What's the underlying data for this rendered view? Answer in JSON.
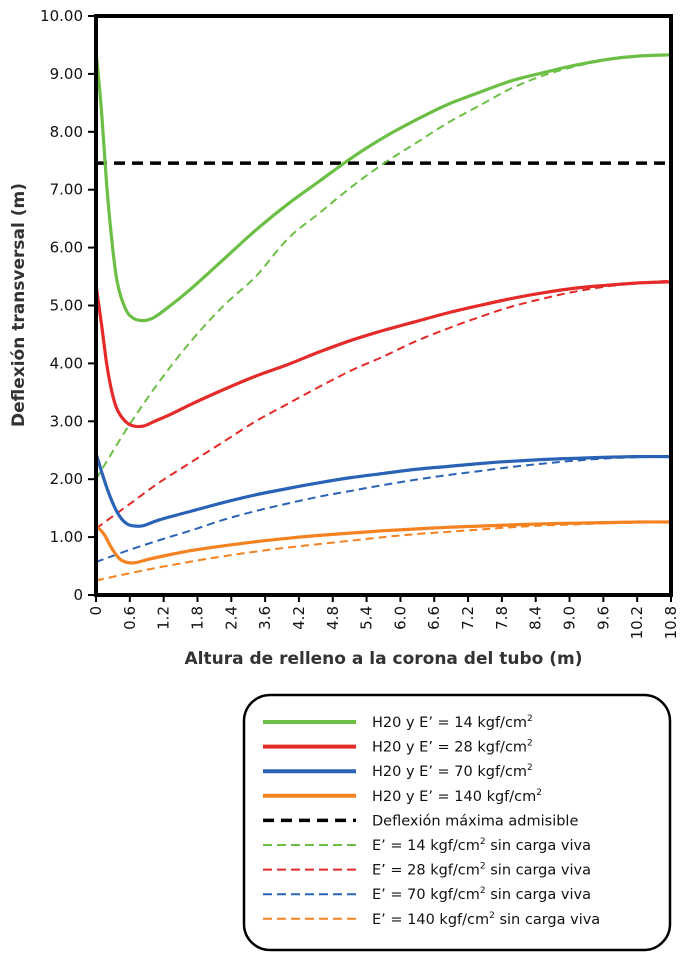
{
  "chart_data": {
    "type": "line",
    "xlabel": "Altura de relleno a la corona del tubo (m)",
    "ylabel": "Deflexión transversal  (m)",
    "xlim": [
      0,
      10.8
    ],
    "ylim": [
      0,
      10
    ],
    "x_ticks": [
      "0",
      "0.6",
      "1.2",
      "1.8",
      "2.4",
      "3.6",
      "4.2",
      "4.8",
      "5.4",
      "6.0",
      "6.6",
      "7.2",
      "7.8",
      "8.4",
      "9.0",
      "9.6",
      "10.2",
      "10.8"
    ],
    "y_ticks": [
      "0",
      "1.00",
      "2.00",
      "3.00",
      "4.00",
      "5.00",
      "6.00",
      "7.00",
      "8.00",
      "9.00",
      "10.00"
    ],
    "grid": false,
    "legend_position": "bottom-right",
    "series": [
      {
        "name": "H20 y E' =   14 kgf/cm²",
        "label_main": "H20 y E’ =   14 kgf/cm",
        "color": "#6cbf45",
        "style": "solid",
        "points": [
          [
            0,
            9.4
          ],
          [
            0.1,
            8.4
          ],
          [
            0.2,
            7.1
          ],
          [
            0.3,
            6.1
          ],
          [
            0.4,
            5.4
          ],
          [
            0.55,
            4.95
          ],
          [
            0.7,
            4.78
          ],
          [
            0.9,
            4.74
          ],
          [
            1.1,
            4.8
          ],
          [
            1.4,
            5.0
          ],
          [
            1.8,
            5.3
          ],
          [
            2.4,
            5.8
          ],
          [
            3.0,
            6.3
          ],
          [
            3.6,
            6.75
          ],
          [
            4.2,
            7.15
          ],
          [
            4.8,
            7.55
          ],
          [
            5.4,
            7.9
          ],
          [
            6.0,
            8.2
          ],
          [
            6.6,
            8.47
          ],
          [
            7.2,
            8.68
          ],
          [
            7.8,
            8.88
          ],
          [
            8.4,
            9.02
          ],
          [
            9.0,
            9.15
          ],
          [
            9.6,
            9.25
          ],
          [
            10.2,
            9.31
          ],
          [
            10.8,
            9.33
          ]
        ]
      },
      {
        "name": "H20 y E' =   28 kgf/cm²",
        "label_main": "H20 y E’ =   28 kgf/cm",
        "color": "#e52a2a",
        "style": "solid",
        "points": [
          [
            0,
            5.35
          ],
          [
            0.1,
            4.7
          ],
          [
            0.2,
            4.0
          ],
          [
            0.3,
            3.5
          ],
          [
            0.4,
            3.2
          ],
          [
            0.55,
            3.0
          ],
          [
            0.7,
            2.92
          ],
          [
            0.9,
            2.92
          ],
          [
            1.1,
            3.0
          ],
          [
            1.4,
            3.12
          ],
          [
            1.8,
            3.3
          ],
          [
            2.4,
            3.55
          ],
          [
            3.0,
            3.78
          ],
          [
            3.6,
            3.98
          ],
          [
            4.2,
            4.2
          ],
          [
            4.8,
            4.4
          ],
          [
            5.4,
            4.57
          ],
          [
            6.0,
            4.72
          ],
          [
            6.6,
            4.87
          ],
          [
            7.2,
            5.0
          ],
          [
            7.8,
            5.12
          ],
          [
            8.4,
            5.22
          ],
          [
            9.0,
            5.3
          ],
          [
            9.6,
            5.35
          ],
          [
            10.2,
            5.39
          ],
          [
            10.8,
            5.41
          ]
        ]
      },
      {
        "name": "H20 y E' =   70 kgf/cm²",
        "label_main": "H20 y E’ =   70 kgf/cm",
        "color": "#2a62b5",
        "style": "solid",
        "points": [
          [
            0,
            2.45
          ],
          [
            0.15,
            2.0
          ],
          [
            0.3,
            1.62
          ],
          [
            0.45,
            1.35
          ],
          [
            0.6,
            1.22
          ],
          [
            0.75,
            1.19
          ],
          [
            0.9,
            1.2
          ],
          [
            1.2,
            1.3
          ],
          [
            1.8,
            1.45
          ],
          [
            2.4,
            1.6
          ],
          [
            3.0,
            1.73
          ],
          [
            3.6,
            1.84
          ],
          [
            4.2,
            1.94
          ],
          [
            4.8,
            2.03
          ],
          [
            5.4,
            2.1
          ],
          [
            6.0,
            2.17
          ],
          [
            6.6,
            2.22
          ],
          [
            7.2,
            2.27
          ],
          [
            7.8,
            2.31
          ],
          [
            8.4,
            2.34
          ],
          [
            9.0,
            2.36
          ],
          [
            9.6,
            2.38
          ],
          [
            10.2,
            2.39
          ],
          [
            10.8,
            2.39
          ]
        ]
      },
      {
        "name": "H20 y E' = 140 kgf/cm²",
        "label_main": "H20 y E’ = 140 kgf/cm",
        "color": "#f58220",
        "style": "solid",
        "points": [
          [
            0,
            1.2
          ],
          [
            0.15,
            1.05
          ],
          [
            0.3,
            0.8
          ],
          [
            0.45,
            0.62
          ],
          [
            0.6,
            0.56
          ],
          [
            0.75,
            0.56
          ],
          [
            1.0,
            0.62
          ],
          [
            1.4,
            0.7
          ],
          [
            1.8,
            0.77
          ],
          [
            2.4,
            0.85
          ],
          [
            3.0,
            0.92
          ],
          [
            3.6,
            0.98
          ],
          [
            4.2,
            1.03
          ],
          [
            4.8,
            1.07
          ],
          [
            5.4,
            1.11
          ],
          [
            6.0,
            1.14
          ],
          [
            6.6,
            1.17
          ],
          [
            7.2,
            1.19
          ],
          [
            7.8,
            1.21
          ],
          [
            8.4,
            1.23
          ],
          [
            9.0,
            1.24
          ],
          [
            9.6,
            1.25
          ],
          [
            10.2,
            1.26
          ],
          [
            10.8,
            1.26
          ]
        ]
      },
      {
        "name": "Deflexión máxima admisible",
        "label_main": "Deflexión máxima admisible",
        "color": "#000000",
        "style": "dashed-bold",
        "points": [
          [
            0,
            7.46
          ],
          [
            10.8,
            7.46
          ]
        ]
      },
      {
        "name": "E' =   14 kgf/cm² sin carga viva",
        "label_main": "E’ =   14 kgf/cm",
        "label_tail": " sin carga viva",
        "color": "#6cbf45",
        "style": "dashed",
        "points": [
          [
            0,
            2.0
          ],
          [
            0.6,
            2.9
          ],
          [
            1.2,
            3.7
          ],
          [
            1.8,
            4.4
          ],
          [
            2.4,
            5.0
          ],
          [
            3.0,
            5.5
          ],
          [
            3.6,
            6.15
          ],
          [
            4.2,
            6.6
          ],
          [
            4.8,
            7.05
          ],
          [
            5.4,
            7.45
          ],
          [
            6.0,
            7.8
          ],
          [
            6.6,
            8.15
          ],
          [
            7.2,
            8.45
          ],
          [
            7.8,
            8.75
          ],
          [
            8.4,
            8.97
          ],
          [
            9.0,
            9.13
          ],
          [
            9.6,
            9.24
          ],
          [
            10.2,
            9.31
          ],
          [
            10.8,
            9.33
          ]
        ]
      },
      {
        "name": "E' =   28 kgf/cm² sin carga viva",
        "label_main": "E’ =   28 kgf/cm",
        "label_tail": " sin carga viva",
        "color": "#e52a2a",
        "style": "dashed",
        "points": [
          [
            0,
            1.15
          ],
          [
            0.6,
            1.55
          ],
          [
            1.2,
            1.95
          ],
          [
            1.8,
            2.3
          ],
          [
            2.4,
            2.65
          ],
          [
            3.0,
            3.0
          ],
          [
            3.6,
            3.3
          ],
          [
            4.2,
            3.6
          ],
          [
            4.8,
            3.88
          ],
          [
            5.4,
            4.12
          ],
          [
            6.0,
            4.38
          ],
          [
            6.6,
            4.6
          ],
          [
            7.2,
            4.8
          ],
          [
            7.8,
            4.98
          ],
          [
            8.4,
            5.12
          ],
          [
            9.0,
            5.24
          ],
          [
            9.6,
            5.33
          ],
          [
            10.2,
            5.39
          ],
          [
            10.8,
            5.43
          ]
        ]
      },
      {
        "name": "E' =   70 kgf/cm² sin carga viva",
        "label_main": "E’ =   70 kgf/cm",
        "label_tail": " sin carga viva",
        "color": "#2a62b5",
        "style": "dashed",
        "points": [
          [
            0,
            0.57
          ],
          [
            0.6,
            0.77
          ],
          [
            1.2,
            0.95
          ],
          [
            1.8,
            1.12
          ],
          [
            2.4,
            1.3
          ],
          [
            3.0,
            1.45
          ],
          [
            3.6,
            1.58
          ],
          [
            4.2,
            1.7
          ],
          [
            4.8,
            1.8
          ],
          [
            5.4,
            1.9
          ],
          [
            6.0,
            1.99
          ],
          [
            6.6,
            2.07
          ],
          [
            7.2,
            2.14
          ],
          [
            7.8,
            2.21
          ],
          [
            8.4,
            2.27
          ],
          [
            9.0,
            2.32
          ],
          [
            9.6,
            2.36
          ],
          [
            10.2,
            2.38
          ],
          [
            10.8,
            2.39
          ]
        ]
      },
      {
        "name": "E' = 140 kgf/cm² sin carga viva",
        "label_main": "E’ = 140 kgf/cm",
        "label_tail": " sin carga viva",
        "color": "#f58220",
        "style": "dashed",
        "points": [
          [
            0,
            0.25
          ],
          [
            0.6,
            0.37
          ],
          [
            1.2,
            0.48
          ],
          [
            1.8,
            0.58
          ],
          [
            2.4,
            0.67
          ],
          [
            3.0,
            0.75
          ],
          [
            3.6,
            0.82
          ],
          [
            4.2,
            0.88
          ],
          [
            4.8,
            0.94
          ],
          [
            5.4,
            1.0
          ],
          [
            6.0,
            1.05
          ],
          [
            6.6,
            1.09
          ],
          [
            7.2,
            1.13
          ],
          [
            7.8,
            1.17
          ],
          [
            8.4,
            1.2
          ],
          [
            9.0,
            1.22
          ],
          [
            9.6,
            1.24
          ],
          [
            10.2,
            1.25
          ],
          [
            10.8,
            1.26
          ]
        ]
      }
    ]
  }
}
